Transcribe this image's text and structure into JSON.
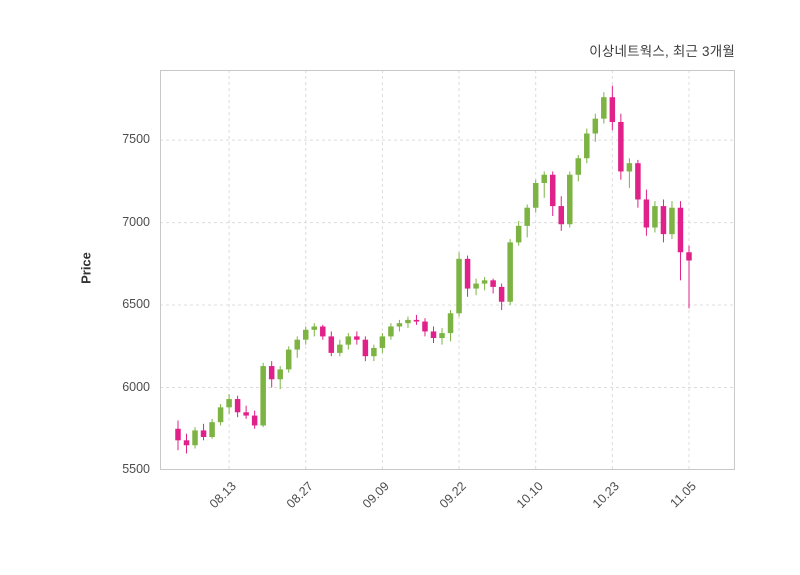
{
  "title": "이상네트웍스, 최근 3개월",
  "chart_data": {
    "type": "candlestick",
    "title": "이상네트웍스, 최근 3개월",
    "ylabel": "Price",
    "ylim": [
      5500,
      7925
    ],
    "yticks": [
      5500,
      6000,
      6500,
      7000,
      7500
    ],
    "xtick_labels": [
      "08.13",
      "08.27",
      "09.09",
      "09.22",
      "10.10",
      "10.23",
      "11.05"
    ],
    "xtick_indices": [
      6,
      15,
      24,
      33,
      42,
      51,
      60
    ],
    "grid": true,
    "legend": "none",
    "colors": {
      "up": "#7cb342",
      "down": "#e0218a",
      "grid": "#dcdcdc",
      "border": "#c8c8c8",
      "text": "#4d4d4d"
    },
    "candles_format": [
      "open",
      "high",
      "low",
      "close"
    ],
    "candles": [
      [
        5750,
        5800,
        5620,
        5680
      ],
      [
        5680,
        5720,
        5600,
        5650
      ],
      [
        5650,
        5760,
        5630,
        5740
      ],
      [
        5740,
        5780,
        5680,
        5700
      ],
      [
        5700,
        5810,
        5690,
        5790
      ],
      [
        5790,
        5900,
        5770,
        5880
      ],
      [
        5880,
        5960,
        5840,
        5930
      ],
      [
        5930,
        5950,
        5820,
        5850
      ],
      [
        5850,
        5890,
        5810,
        5830
      ],
      [
        5830,
        5860,
        5750,
        5770
      ],
      [
        5770,
        6150,
        5760,
        6130
      ],
      [
        6130,
        6160,
        6000,
        6050
      ],
      [
        6050,
        6130,
        5990,
        6110
      ],
      [
        6110,
        6250,
        6090,
        6230
      ],
      [
        6230,
        6310,
        6180,
        6290
      ],
      [
        6290,
        6370,
        6260,
        6350
      ],
      [
        6350,
        6390,
        6310,
        6370
      ],
      [
        6370,
        6380,
        6290,
        6310
      ],
      [
        6310,
        6340,
        6190,
        6210
      ],
      [
        6210,
        6290,
        6190,
        6260
      ],
      [
        6260,
        6330,
        6230,
        6310
      ],
      [
        6310,
        6340,
        6260,
        6290
      ],
      [
        6290,
        6310,
        6160,
        6190
      ],
      [
        6190,
        6260,
        6160,
        6240
      ],
      [
        6240,
        6330,
        6210,
        6310
      ],
      [
        6310,
        6390,
        6290,
        6370
      ],
      [
        6370,
        6410,
        6340,
        6390
      ],
      [
        6390,
        6430,
        6360,
        6410
      ],
      [
        6410,
        6440,
        6380,
        6400
      ],
      [
        6400,
        6420,
        6310,
        6340
      ],
      [
        6340,
        6370,
        6270,
        6300
      ],
      [
        6300,
        6360,
        6260,
        6330
      ],
      [
        6330,
        6470,
        6280,
        6450
      ],
      [
        6450,
        6820,
        6430,
        6780
      ],
      [
        6780,
        6800,
        6550,
        6600
      ],
      [
        6600,
        6660,
        6560,
        6630
      ],
      [
        6630,
        6670,
        6590,
        6650
      ],
      [
        6650,
        6660,
        6570,
        6610
      ],
      [
        6610,
        6630,
        6470,
        6520
      ],
      [
        6520,
        6900,
        6500,
        6880
      ],
      [
        6880,
        7010,
        6860,
        6980
      ],
      [
        6980,
        7110,
        6910,
        7090
      ],
      [
        7090,
        7260,
        7060,
        7240
      ],
      [
        7240,
        7310,
        7150,
        7290
      ],
      [
        7290,
        7310,
        7040,
        7100
      ],
      [
        7100,
        7160,
        6950,
        6990
      ],
      [
        6990,
        7310,
        6970,
        7290
      ],
      [
        7290,
        7410,
        7250,
        7390
      ],
      [
        7390,
        7570,
        7360,
        7540
      ],
      [
        7540,
        7660,
        7490,
        7630
      ],
      [
        7630,
        7790,
        7600,
        7760
      ],
      [
        7760,
        7830,
        7560,
        7610
      ],
      [
        7610,
        7660,
        7260,
        7310
      ],
      [
        7310,
        7390,
        7210,
        7360
      ],
      [
        7360,
        7380,
        7090,
        7140
      ],
      [
        7140,
        7200,
        6920,
        6970
      ],
      [
        6970,
        7130,
        6940,
        7100
      ],
      [
        7100,
        7140,
        6880,
        6930
      ],
      [
        6930,
        7130,
        6900,
        7090
      ],
      [
        7090,
        7130,
        6650,
        6820
      ],
      [
        6820,
        6860,
        6480,
        6770
      ]
    ]
  }
}
